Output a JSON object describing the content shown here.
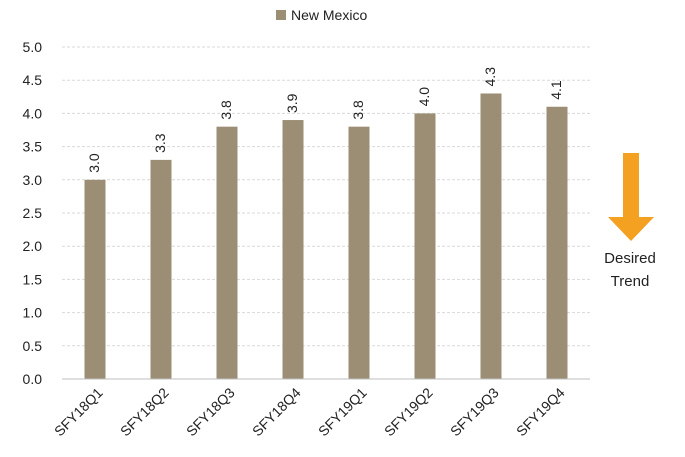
{
  "chart_data": {
    "type": "bar",
    "categories": [
      "SFY18Q1",
      "SFY18Q2",
      "SFY18Q3",
      "SFY18Q4",
      "SFY19Q1",
      "SFY19Q2",
      "SFY19Q3",
      "SFY19Q4"
    ],
    "series": [
      {
        "name": "New Mexico",
        "values": [
          3.0,
          3.3,
          3.8,
          3.9,
          3.8,
          4.0,
          4.3,
          4.1
        ],
        "data_labels": [
          "3.0",
          "3.3",
          "3.8",
          "3.9",
          "3.8",
          "4.0",
          "4.3",
          "4.1"
        ],
        "color": "#9B8E74"
      }
    ],
    "ylim": [
      0,
      5
    ],
    "yticks": [
      "0.0",
      "0.5",
      "1.0",
      "1.5",
      "2.0",
      "2.5",
      "3.0",
      "3.5",
      "4.0",
      "4.5",
      "5.0"
    ],
    "grid": true,
    "legend_position": "top-center",
    "annotation": {
      "lines": [
        "Desired",
        "Trend"
      ],
      "icon": "down-arrow-icon",
      "color": "#F4A020"
    }
  }
}
